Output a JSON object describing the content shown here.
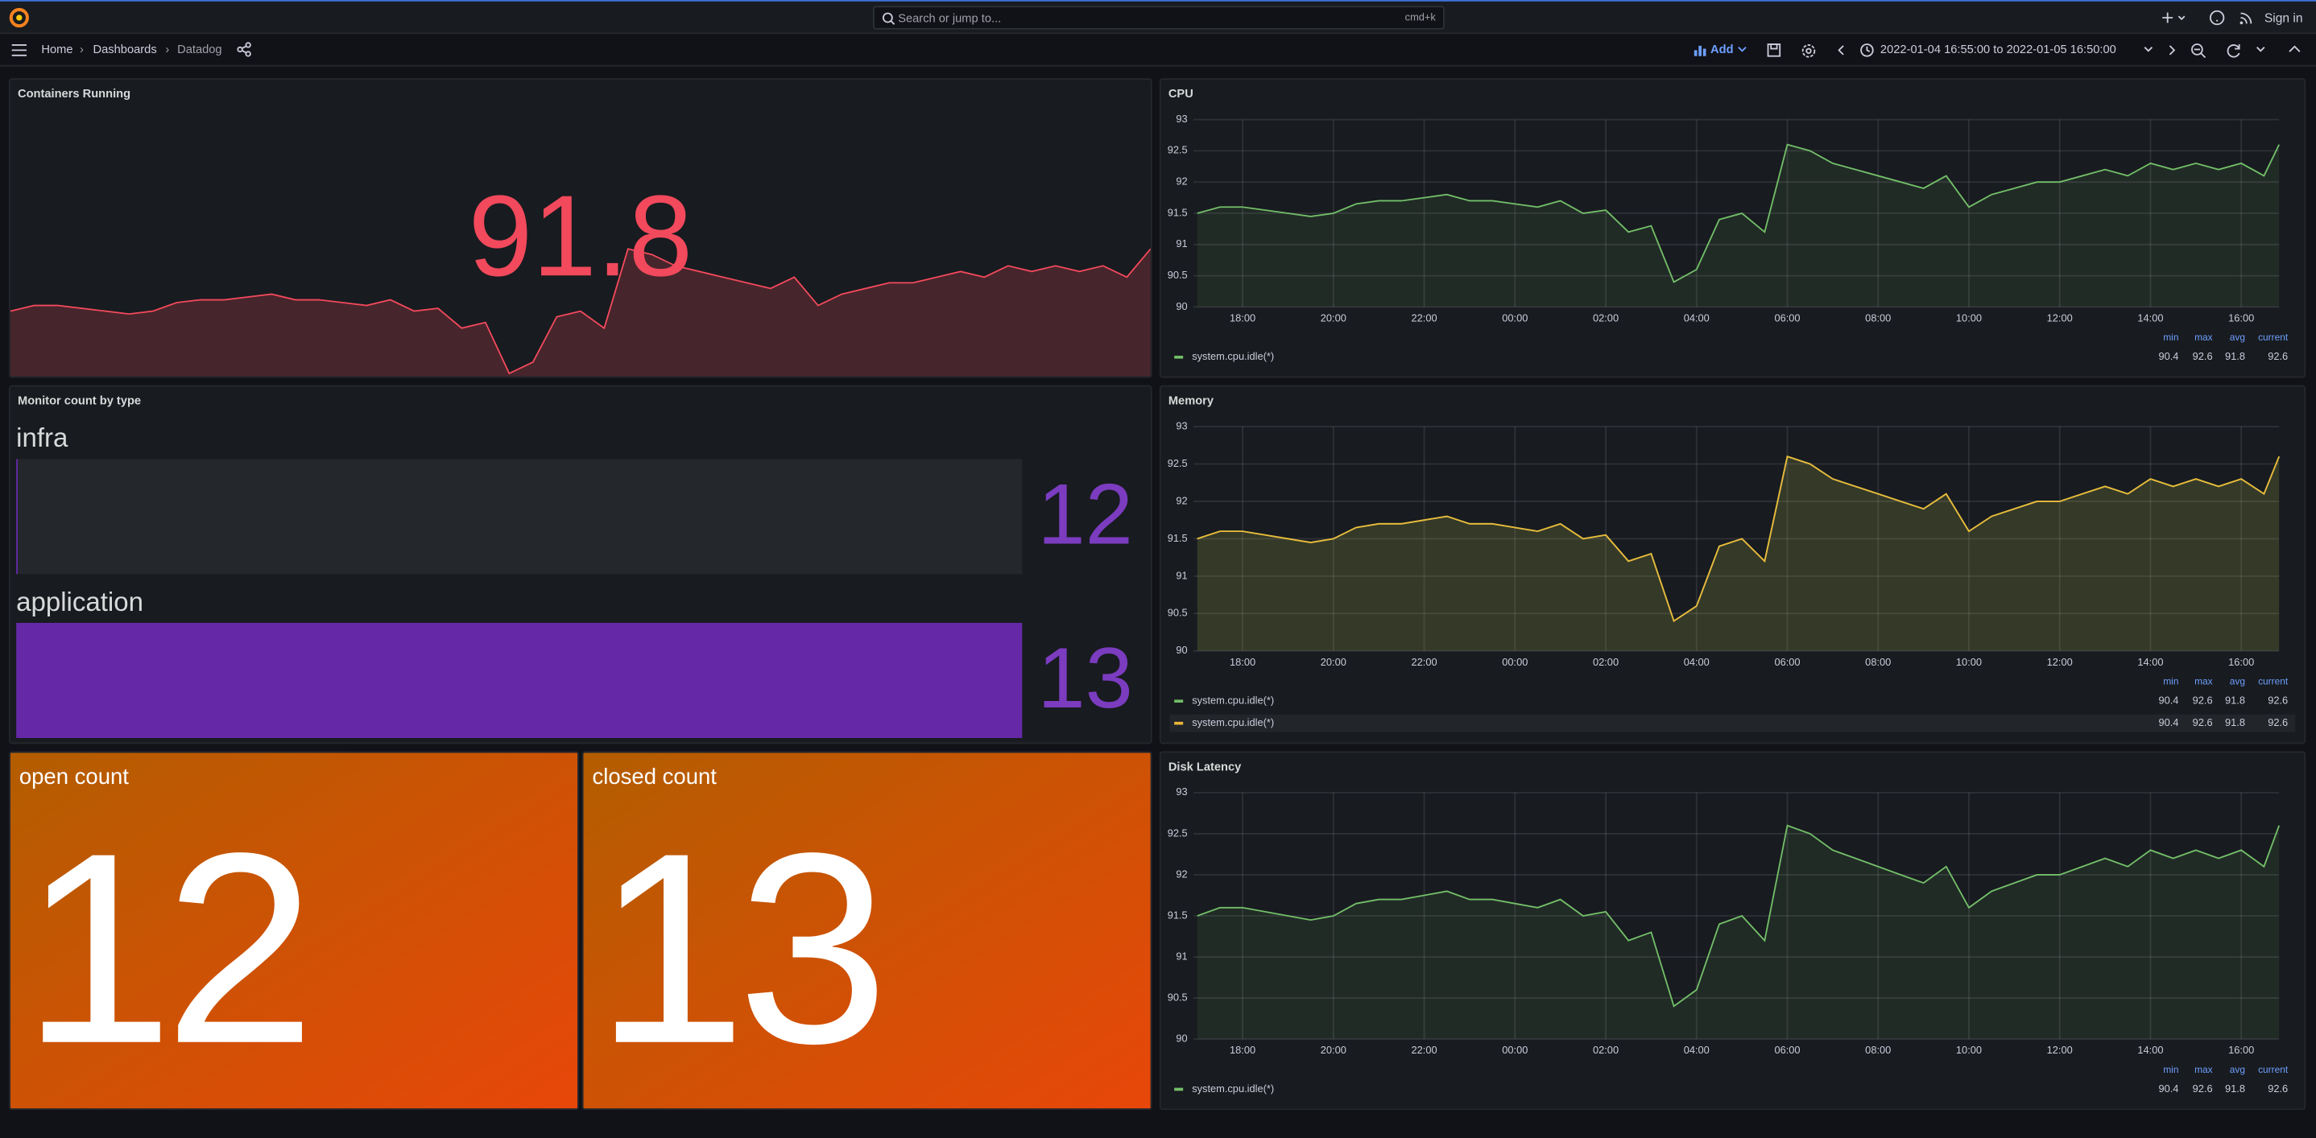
{
  "top_bar": {
    "search": "Search or jump to...",
    "shortcut": "cmd+k",
    "sign_in": "Sign in"
  },
  "toolbar": {
    "breadcrumbs": [
      "Home",
      "Dashboards",
      "Datadog"
    ],
    "add": "Add",
    "time_range": "2022-01-04 16:55:00 to 2022-01-05 16:50:00"
  },
  "panels": [
    {
      "chart_data": {
        "type": "stat",
        "title": "Containers Running",
        "value": 91.8,
        "color": "#f2495c",
        "x": [
          "17:00",
          "17:30",
          "18:00",
          "18:30",
          "19:00",
          "19:30",
          "20:00",
          "20:30",
          "21:00",
          "21:30",
          "22:00",
          "22:30",
          "23:00",
          "23:30",
          "00:00",
          "00:30",
          "01:00",
          "01:30",
          "02:00",
          "02:30",
          "03:00",
          "03:30",
          "04:00",
          "04:30",
          "05:00",
          "05:30",
          "06:00",
          "06:30",
          "07:00",
          "07:30",
          "08:00",
          "08:30",
          "09:00",
          "09:30",
          "10:00",
          "10:30",
          "11:00",
          "11:30",
          "12:00",
          "12:30",
          "13:00",
          "13:30",
          "14:00",
          "14:30",
          "15:00",
          "15:30",
          "16:00",
          "16:30",
          "16:50"
        ],
        "values": [
          91.5,
          91.6,
          91.6,
          91.55,
          91.5,
          91.45,
          91.5,
          91.65,
          91.7,
          91.7,
          91.75,
          91.8,
          91.7,
          91.7,
          91.65,
          91.6,
          91.7,
          91.5,
          91.55,
          91.2,
          91.3,
          90.4,
          90.6,
          91.4,
          91.5,
          91.2,
          92.6,
          92.5,
          92.3,
          92.2,
          92.1,
          92,
          91.9,
          92.1,
          91.6,
          91.8,
          91.9,
          92,
          92,
          92.1,
          92.2,
          92.1,
          92.3,
          92.2,
          92.3,
          92.2,
          92.3,
          92.1,
          92.6
        ]
      }
    },
    {
      "chart_data": {
        "type": "line",
        "title": "CPU",
        "xlim": [
          "16:55",
          "16:50"
        ],
        "x": [
          "17:00",
          "17:30",
          "18:00",
          "18:30",
          "19:00",
          "19:30",
          "20:00",
          "20:30",
          "21:00",
          "21:30",
          "22:00",
          "22:30",
          "23:00",
          "23:30",
          "00:00",
          "00:30",
          "01:00",
          "01:30",
          "02:00",
          "02:30",
          "03:00",
          "03:30",
          "04:00",
          "04:30",
          "05:00",
          "05:30",
          "06:00",
          "06:30",
          "07:00",
          "07:30",
          "08:00",
          "08:30",
          "09:00",
          "09:30",
          "10:00",
          "10:30",
          "11:00",
          "11:30",
          "12:00",
          "12:30",
          "13:00",
          "13:30",
          "14:00",
          "14:30",
          "15:00",
          "15:30",
          "16:00",
          "16:30",
          "16:50"
        ],
        "xticks": [
          "18:00",
          "20:00",
          "22:00",
          "00:00",
          "02:00",
          "04:00",
          "06:00",
          "08:00",
          "10:00",
          "12:00",
          "14:00",
          "16:00"
        ],
        "ylim": [
          90,
          93
        ],
        "yticks": [
          90,
          90.5,
          91,
          91.5,
          92,
          92.5,
          93
        ],
        "grid": true,
        "legend_columns": [
          "min",
          "max",
          "avg",
          "current"
        ],
        "series": [
          {
            "name": "system.cpu.idle(*)",
            "color": "#73bf69",
            "stats": [
              90.4,
              92.6,
              91.8,
              92.6
            ],
            "values": [
              91.5,
              91.6,
              91.6,
              91.55,
              91.5,
              91.45,
              91.5,
              91.65,
              91.7,
              91.7,
              91.75,
              91.8,
              91.7,
              91.7,
              91.65,
              91.6,
              91.7,
              91.5,
              91.55,
              91.2,
              91.3,
              90.4,
              90.6,
              91.4,
              91.5,
              91.2,
              92.6,
              92.5,
              92.3,
              92.2,
              92.1,
              92,
              91.9,
              92.1,
              91.6,
              91.8,
              91.9,
              92,
              92,
              92.1,
              92.2,
              92.1,
              92.3,
              92.2,
              92.3,
              92.2,
              92.3,
              92.1,
              92.6
            ]
          }
        ]
      }
    },
    {
      "chart_data": {
        "type": "bargauge",
        "title": "Monitor count by type",
        "categories": [
          "infra",
          "application"
        ],
        "values": [
          12,
          13
        ],
        "color": "#6529a8"
      }
    },
    {
      "chart_data": {
        "type": "line",
        "title": "Memory",
        "xlim": [
          "16:55",
          "16:50"
        ],
        "x": [
          "17:00",
          "17:30",
          "18:00",
          "18:30",
          "19:00",
          "19:30",
          "20:00",
          "20:30",
          "21:00",
          "21:30",
          "22:00",
          "22:30",
          "23:00",
          "23:30",
          "00:00",
          "00:30",
          "01:00",
          "01:30",
          "02:00",
          "02:30",
          "03:00",
          "03:30",
          "04:00",
          "04:30",
          "05:00",
          "05:30",
          "06:00",
          "06:30",
          "07:00",
          "07:30",
          "08:00",
          "08:30",
          "09:00",
          "09:30",
          "10:00",
          "10:30",
          "11:00",
          "11:30",
          "12:00",
          "12:30",
          "13:00",
          "13:30",
          "14:00",
          "14:30",
          "15:00",
          "15:30",
          "16:00",
          "16:30",
          "16:50"
        ],
        "xticks": [
          "18:00",
          "20:00",
          "22:00",
          "00:00",
          "02:00",
          "04:00",
          "06:00",
          "08:00",
          "10:00",
          "12:00",
          "14:00",
          "16:00"
        ],
        "ylim": [
          90,
          93
        ],
        "yticks": [
          90,
          90.5,
          91,
          91.5,
          92,
          92.5,
          93
        ],
        "grid": true,
        "legend_columns": [
          "min",
          "max",
          "avg",
          "current"
        ],
        "series": [
          {
            "name": "system.cpu.idle(*)",
            "color": "#73bf69",
            "stats": [
              90.4,
              92.6,
              91.8,
              92.6
            ],
            "values": [
              91.5,
              91.6,
              91.6,
              91.55,
              91.5,
              91.45,
              91.5,
              91.65,
              91.7,
              91.7,
              91.75,
              91.8,
              91.7,
              91.7,
              91.65,
              91.6,
              91.7,
              91.5,
              91.55,
              91.2,
              91.3,
              90.4,
              90.6,
              91.4,
              91.5,
              91.2,
              92.6,
              92.5,
              92.3,
              92.2,
              92.1,
              92,
              91.9,
              92.1,
              91.6,
              91.8,
              91.9,
              92,
              92,
              92.1,
              92.2,
              92.1,
              92.3,
              92.2,
              92.3,
              92.2,
              92.3,
              92.1,
              92.6
            ]
          },
          {
            "name": "system.cpu.idle(*)",
            "color": "#eab839",
            "stats": [
              90.4,
              92.6,
              91.8,
              92.6
            ],
            "values": [
              91.5,
              91.6,
              91.6,
              91.55,
              91.5,
              91.45,
              91.5,
              91.65,
              91.7,
              91.7,
              91.75,
              91.8,
              91.7,
              91.7,
              91.65,
              91.6,
              91.7,
              91.5,
              91.55,
              91.2,
              91.3,
              90.4,
              90.6,
              91.4,
              91.5,
              91.2,
              92.6,
              92.5,
              92.3,
              92.2,
              92.1,
              92,
              91.9,
              92.1,
              91.6,
              91.8,
              91.9,
              92,
              92,
              92.1,
              92.2,
              92.1,
              92.3,
              92.2,
              92.3,
              92.2,
              92.3,
              92.1,
              92.6
            ]
          }
        ]
      }
    },
    {
      "chart_data": {
        "type": "stat",
        "title": "open count",
        "value": 12,
        "color": "#e8470a"
      }
    },
    {
      "chart_data": {
        "type": "stat",
        "title": "closed count",
        "value": 13,
        "color": "#e8470a"
      }
    },
    {
      "chart_data": {
        "type": "line",
        "title": "Disk Latency",
        "xlim": [
          "16:55",
          "16:50"
        ],
        "x": [
          "17:00",
          "17:30",
          "18:00",
          "18:30",
          "19:00",
          "19:30",
          "20:00",
          "20:30",
          "21:00",
          "21:30",
          "22:00",
          "22:30",
          "23:00",
          "23:30",
          "00:00",
          "00:30",
          "01:00",
          "01:30",
          "02:00",
          "02:30",
          "03:00",
          "03:30",
          "04:00",
          "04:30",
          "05:00",
          "05:30",
          "06:00",
          "06:30",
          "07:00",
          "07:30",
          "08:00",
          "08:30",
          "09:00",
          "09:30",
          "10:00",
          "10:30",
          "11:00",
          "11:30",
          "12:00",
          "12:30",
          "13:00",
          "13:30",
          "14:00",
          "14:30",
          "15:00",
          "15:30",
          "16:00",
          "16:30",
          "16:50"
        ],
        "xticks": [
          "18:00",
          "20:00",
          "22:00",
          "00:00",
          "02:00",
          "04:00",
          "06:00",
          "08:00",
          "10:00",
          "12:00",
          "14:00",
          "16:00"
        ],
        "ylim": [
          90,
          93
        ],
        "yticks": [
          90,
          90.5,
          91,
          91.5,
          92,
          92.5,
          93
        ],
        "grid": true,
        "legend_columns": [
          "min",
          "max",
          "avg",
          "current"
        ],
        "series": [
          {
            "name": "system.cpu.idle(*)",
            "color": "#73bf69",
            "stats": [
              90.4,
              92.6,
              91.8,
              92.6
            ],
            "values": [
              91.5,
              91.6,
              91.6,
              91.55,
              91.5,
              91.45,
              91.5,
              91.65,
              91.7,
              91.7,
              91.75,
              91.8,
              91.7,
              91.7,
              91.65,
              91.6,
              91.7,
              91.5,
              91.55,
              91.2,
              91.3,
              90.4,
              90.6,
              91.4,
              91.5,
              91.2,
              92.6,
              92.5,
              92.3,
              92.2,
              92.1,
              92,
              91.9,
              92.1,
              91.6,
              91.8,
              91.9,
              92,
              92,
              92.1,
              92.2,
              92.1,
              92.3,
              92.2,
              92.3,
              92.2,
              92.3,
              92.1,
              92.6
            ]
          }
        ]
      }
    }
  ]
}
